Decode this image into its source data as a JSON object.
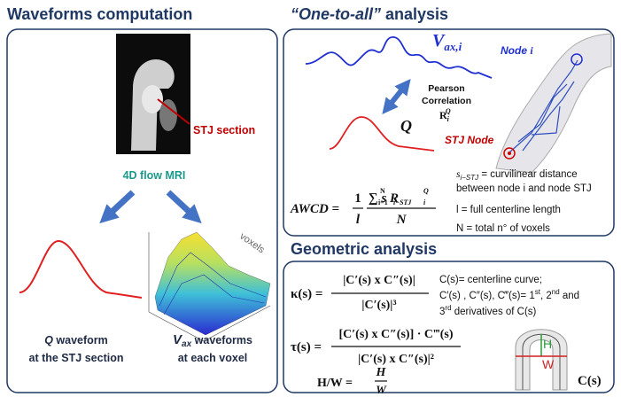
{
  "left": {
    "title": "Waveforms computation",
    "mri_label": "STJ section",
    "mri_caption": "4D flow MRI",
    "surface_label": "voxels",
    "q_caption": {
      "symbol": "Q",
      "text": " waveform",
      "line2": "at the STJ section"
    },
    "v_caption": {
      "symbol": "V",
      "sub": "ax",
      "text": " waveforms",
      "line2": "at each voxel"
    }
  },
  "one_to_all": {
    "title_italic": "“One-to-all”",
    "title_rest": " analysis",
    "vax": {
      "symbol": "V",
      "sub": "ax,i"
    },
    "pearson": {
      "line1": "Pearson",
      "line2": "Correlation",
      "symbol": "R",
      "sub": "i",
      "sup": "Q"
    },
    "q_label": "Q",
    "node_i": {
      "text": "Node ",
      "symbol": "i"
    },
    "stj_node": "STJ Node",
    "awcd": {
      "lhs": "AWCD =",
      "frac1_num": "1",
      "frac1_den": "l",
      "num": "∑ s R",
      "num_sub1": "i=1",
      "num_sup1": "N",
      "num_sub2": "i−STJ",
      "num_sub3": "i",
      "num_sup3": "Q",
      "den": "N"
    },
    "definitions": [
      "s",
      "i−STJ",
      " = curvilinear distance",
      "between node i and node STJ",
      "l = full centerline length",
      "N = total n° of voxels"
    ]
  },
  "geometric": {
    "title": "Geometric analysis",
    "kappa": {
      "lhs": "κ(s) =",
      "num": "|C′(s) x C″(s)|",
      "den": "|C′(s)|³"
    },
    "tau": {
      "lhs": "τ(s) =",
      "num": "[C′(s) x C″(s)] · C‴(s)",
      "den": "|C′(s) x C″(s)|²"
    },
    "hw": {
      "lhs": "H/W =",
      "num": "H",
      "den": "W"
    },
    "def_line1": "C(s)= centerline curve;",
    "def_line2": [
      "C′(s) , C″(s), C‴(s)= 1",
      "st",
      ", 2",
      "nd",
      " and"
    ],
    "def_line3": [
      "3",
      "rd",
      " derivatives of C(s)"
    ],
    "shape_h": "H",
    "shape_w": "W",
    "shape_label": "C(s)"
  }
}
